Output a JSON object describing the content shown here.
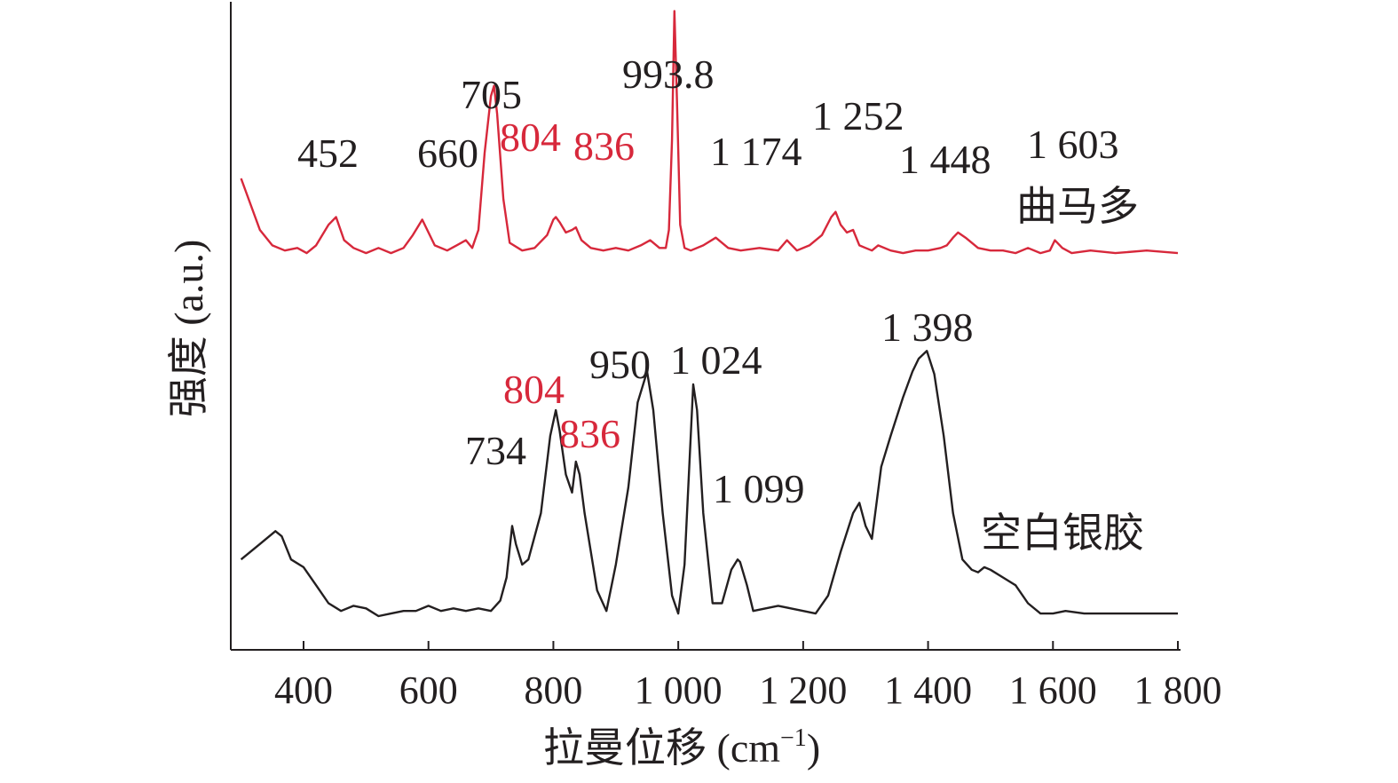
{
  "chart_data": {
    "type": "line",
    "xlabel": "拉曼位移 (cm",
    "xlabel_sup": "−1",
    "xlabel_close": ")",
    "ylabel": "强度 (a.u.)",
    "xlim": [
      300,
      1800
    ],
    "xticks": [
      {
        "value": 400,
        "label": "400"
      },
      {
        "value": 600,
        "label": "600"
      },
      {
        "value": 800,
        "label": "800"
      },
      {
        "value": 1000,
        "label": "1 000"
      },
      {
        "value": 1200,
        "label": "1 200"
      },
      {
        "value": 1400,
        "label": "1 400"
      },
      {
        "value": 1600,
        "label": "1 600"
      },
      {
        "value": 1800,
        "label": "1 800"
      }
    ],
    "yticks_shown": false,
    "grid": false,
    "colors": {
      "axis": "#231f20",
      "black_text": "#231f20",
      "red_text": "#d7283b"
    },
    "series": [
      {
        "name": "曲马多",
        "color": "#d7283b",
        "offset": 1.4,
        "x": [
          300,
          330,
          350,
          370,
          390,
          405,
          420,
          440,
          452,
          465,
          480,
          500,
          520,
          540,
          560,
          575,
          590,
          610,
          630,
          645,
          660,
          670,
          680,
          690,
          700,
          705,
          710,
          720,
          730,
          750,
          770,
          790,
          800,
          804,
          810,
          820,
          830,
          836,
          845,
          860,
          880,
          900,
          920,
          940,
          955,
          970,
          980,
          985,
          990,
          993.8,
          998,
          1003,
          1010,
          1020,
          1040,
          1060,
          1080,
          1100,
          1130,
          1160,
          1174,
          1190,
          1210,
          1230,
          1245,
          1252,
          1260,
          1270,
          1280,
          1290,
          1300,
          1310,
          1320,
          1340,
          1360,
          1380,
          1400,
          1420,
          1430,
          1440,
          1448,
          1460,
          1480,
          1500,
          1520,
          1540,
          1560,
          1580,
          1595,
          1603,
          1615,
          1630,
          1660,
          1700,
          1750,
          1800
        ],
        "y": [
          0.3,
          0.1,
          0.04,
          0.02,
          0.03,
          0.01,
          0.04,
          0.12,
          0.15,
          0.06,
          0.03,
          0.01,
          0.03,
          0.01,
          0.03,
          0.08,
          0.14,
          0.04,
          0.02,
          0.04,
          0.06,
          0.03,
          0.1,
          0.4,
          0.62,
          0.66,
          0.55,
          0.22,
          0.05,
          0.02,
          0.03,
          0.08,
          0.14,
          0.15,
          0.13,
          0.09,
          0.1,
          0.11,
          0.06,
          0.03,
          0.02,
          0.03,
          0.02,
          0.04,
          0.06,
          0.03,
          0.03,
          0.1,
          0.45,
          0.95,
          0.6,
          0.12,
          0.03,
          0.02,
          0.04,
          0.07,
          0.03,
          0.02,
          0.03,
          0.02,
          0.06,
          0.02,
          0.04,
          0.08,
          0.15,
          0.17,
          0.12,
          0.09,
          0.1,
          0.04,
          0.03,
          0.02,
          0.04,
          0.02,
          0.01,
          0.02,
          0.02,
          0.03,
          0.04,
          0.07,
          0.09,
          0.07,
          0.03,
          0.02,
          0.02,
          0.01,
          0.03,
          0.01,
          0.02,
          0.06,
          0.03,
          0.01,
          0.02,
          0.01,
          0.02,
          0.01
        ]
      },
      {
        "name": "空白银胶",
        "color": "#231f20",
        "offset": 0,
        "x": [
          300,
          330,
          355,
          365,
          380,
          400,
          420,
          440,
          460,
          480,
          500,
          520,
          540,
          560,
          580,
          600,
          620,
          640,
          660,
          680,
          700,
          715,
          725,
          734,
          740,
          750,
          760,
          780,
          795,
          804,
          810,
          820,
          830,
          836,
          842,
          850,
          870,
          885,
          900,
          920,
          935,
          950,
          960,
          975,
          990,
          1000,
          1010,
          1020,
          1024,
          1030,
          1040,
          1055,
          1070,
          1085,
          1095,
          1099,
          1110,
          1120,
          1140,
          1160,
          1180,
          1200,
          1220,
          1240,
          1260,
          1280,
          1290,
          1300,
          1310,
          1325,
          1340,
          1360,
          1375,
          1385,
          1398,
          1410,
          1425,
          1440,
          1455,
          1470,
          1480,
          1490,
          1500,
          1520,
          1540,
          1560,
          1580,
          1600,
          1620,
          1650,
          1700,
          1750,
          1800
        ],
        "y": [
          0.22,
          0.28,
          0.33,
          0.31,
          0.22,
          0.19,
          0.12,
          0.05,
          0.02,
          0.04,
          0.03,
          0.0,
          0.01,
          0.02,
          0.02,
          0.04,
          0.02,
          0.03,
          0.02,
          0.03,
          0.02,
          0.06,
          0.15,
          0.35,
          0.28,
          0.2,
          0.22,
          0.4,
          0.7,
          0.8,
          0.72,
          0.55,
          0.48,
          0.6,
          0.55,
          0.4,
          0.1,
          0.02,
          0.2,
          0.5,
          0.83,
          0.95,
          0.8,
          0.4,
          0.08,
          0.01,
          0.2,
          0.7,
          0.9,
          0.8,
          0.4,
          0.05,
          0.05,
          0.18,
          0.22,
          0.21,
          0.12,
          0.02,
          0.03,
          0.04,
          0.03,
          0.02,
          0.01,
          0.08,
          0.25,
          0.4,
          0.44,
          0.35,
          0.3,
          0.58,
          0.7,
          0.85,
          0.95,
          1.0,
          1.03,
          0.94,
          0.7,
          0.4,
          0.22,
          0.18,
          0.17,
          0.19,
          0.18,
          0.15,
          0.12,
          0.05,
          0.01,
          0.01,
          0.02,
          0.01,
          0.01,
          0.01,
          0.01
        ]
      }
    ],
    "annotations": [
      {
        "series": 0,
        "text": "452",
        "color": "black"
      },
      {
        "series": 0,
        "text": "660",
        "color": "black"
      },
      {
        "series": 0,
        "text": "705",
        "color": "black"
      },
      {
        "series": 0,
        "text": "804",
        "color": "red"
      },
      {
        "series": 0,
        "text": "836",
        "color": "red"
      },
      {
        "series": 0,
        "text": "993.8",
        "color": "black"
      },
      {
        "series": 0,
        "text": "1 174",
        "color": "black"
      },
      {
        "series": 0,
        "text": "1 252",
        "color": "black"
      },
      {
        "series": 0,
        "text": "1 448",
        "color": "black"
      },
      {
        "series": 0,
        "text": "1 603",
        "color": "black"
      },
      {
        "series": 1,
        "text": "734",
        "color": "black"
      },
      {
        "series": 1,
        "text": "804",
        "color": "red"
      },
      {
        "series": 1,
        "text": "836",
        "color": "red"
      },
      {
        "series": 1,
        "text": "950",
        "color": "black"
      },
      {
        "series": 1,
        "text": "1 024",
        "color": "black"
      },
      {
        "series": 1,
        "text": "1 099",
        "color": "black"
      },
      {
        "series": 1,
        "text": "1 398",
        "color": "black"
      }
    ]
  }
}
